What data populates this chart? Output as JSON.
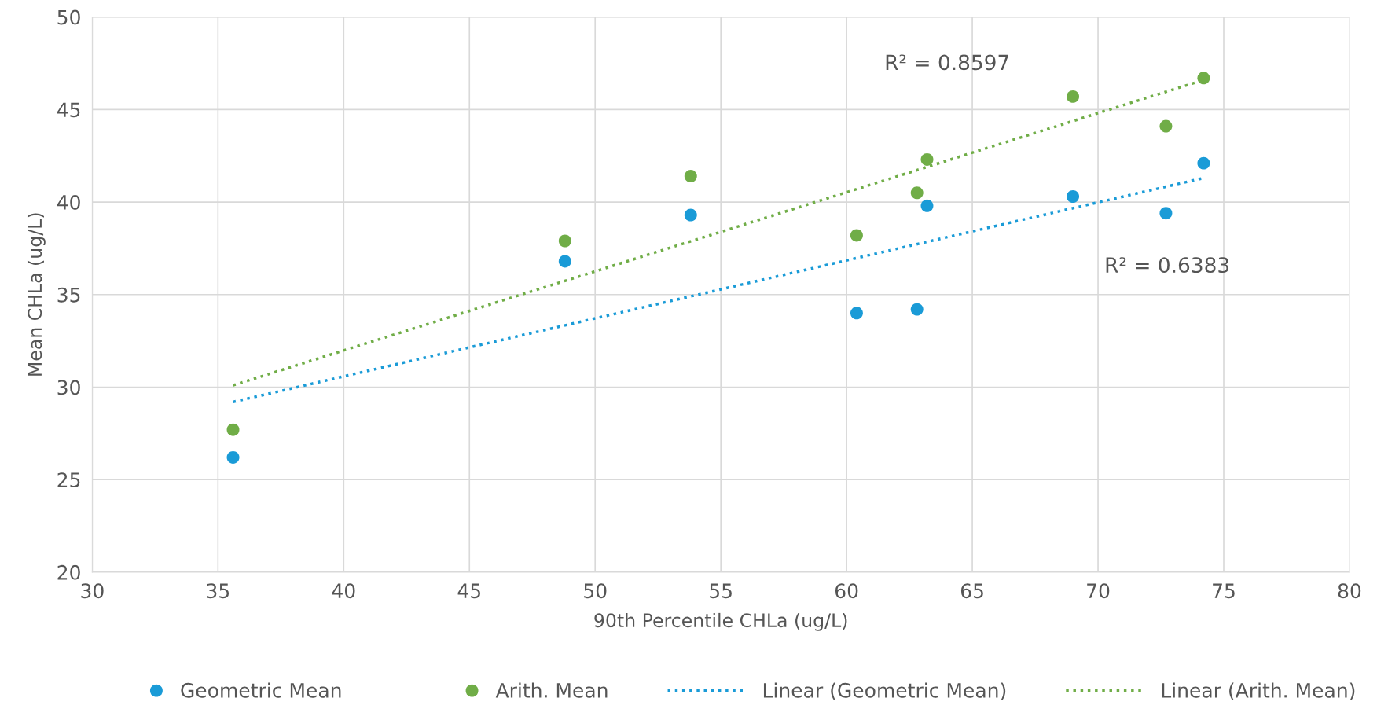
{
  "chart_data": {
    "type": "scatter",
    "xlabel": "90th Percentile CHLa (ug/L)",
    "ylabel": "Mean CHLa (ug/L)",
    "xlim": [
      30,
      80
    ],
    "xticks": [
      30,
      35,
      40,
      45,
      50,
      55,
      60,
      65,
      70,
      75,
      80
    ],
    "ylim": [
      20,
      50
    ],
    "yticks": [
      20,
      25,
      30,
      35,
      40,
      45,
      50
    ],
    "grid": true,
    "legend": "bottom",
    "marker": "circle",
    "series": [
      {
        "name": "Geometric Mean",
        "color": "#1a9bd7",
        "x": [
          35.6,
          48.8,
          53.8,
          60.4,
          62.8,
          63.2,
          69.0,
          72.7,
          74.2
        ],
        "values": [
          26.2,
          36.8,
          39.3,
          34.0,
          34.2,
          39.8,
          40.3,
          39.4,
          42.1
        ]
      },
      {
        "name": "Arith. Mean",
        "color": "#70ad47",
        "x": [
          35.6,
          48.8,
          53.8,
          60.4,
          62.8,
          63.2,
          69.0,
          72.7,
          74.2
        ],
        "values": [
          27.7,
          37.9,
          41.4,
          38.2,
          40.5,
          42.3,
          45.7,
          44.1,
          46.7
        ]
      },
      {
        "name": "Linear (Geometric Mean)",
        "type": "line",
        "color": "#1a9bd7",
        "line_style": "dotted",
        "marker": "none",
        "x": [
          35.6,
          74.2
        ],
        "values": [
          29.2,
          41.3
        ]
      },
      {
        "name": "Linear (Arith. Mean)",
        "type": "line",
        "color": "#70ad47",
        "line_style": "dotted",
        "marker": "none",
        "x": [
          35.6,
          74.2
        ],
        "values": [
          30.1,
          46.6
        ]
      }
    ],
    "annotations": [
      "R² = 0.8597",
      "R² = 0.6383"
    ]
  }
}
